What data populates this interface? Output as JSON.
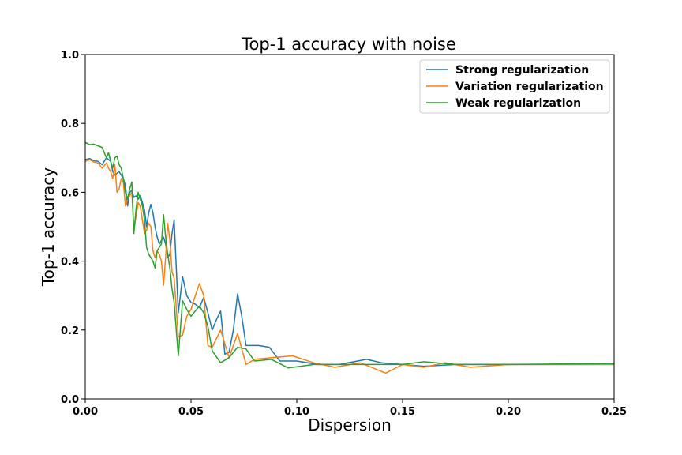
{
  "chart_data": {
    "type": "line",
    "title": "Top-1 accuracy with noise",
    "xlabel": "Dispersion",
    "ylabel": "Top-1 accuracy",
    "xlim": [
      0.0,
      0.25
    ],
    "ylim": [
      0.0,
      1.0
    ],
    "xticks": [
      0.0,
      0.05,
      0.1,
      0.15,
      0.2,
      0.25
    ],
    "yticks": [
      0.0,
      0.2,
      0.4,
      0.6,
      0.8,
      1.0
    ],
    "xtick_labels": [
      "0.00",
      "0.05",
      "0.10",
      "0.15",
      "0.20",
      "0.25"
    ],
    "ytick_labels": [
      "0.0",
      "0.2",
      "0.4",
      "0.6",
      "0.8",
      "1.0"
    ],
    "grid": false,
    "legend_position": "top-right",
    "series": [
      {
        "name": "Strong regularization",
        "color": "#1f77b4",
        "x": [
          0.0,
          0.002,
          0.004,
          0.006,
          0.008,
          0.01,
          0.011,
          0.012,
          0.013,
          0.014,
          0.016,
          0.018,
          0.019,
          0.02,
          0.021,
          0.022,
          0.023,
          0.024,
          0.025,
          0.026,
          0.027,
          0.028,
          0.029,
          0.03,
          0.031,
          0.032,
          0.033,
          0.034,
          0.035,
          0.036,
          0.037,
          0.038,
          0.039,
          0.04,
          0.041,
          0.042,
          0.044,
          0.046,
          0.048,
          0.05,
          0.052,
          0.054,
          0.056,
          0.058,
          0.06,
          0.062,
          0.064,
          0.066,
          0.068,
          0.07,
          0.072,
          0.074,
          0.076,
          0.078,
          0.082,
          0.087,
          0.092,
          0.1,
          0.11,
          0.12,
          0.133,
          0.14,
          0.15,
          0.16,
          0.175,
          0.2,
          0.225,
          0.25
        ],
        "y": [
          0.695,
          0.698,
          0.692,
          0.69,
          0.68,
          0.7,
          0.695,
          0.69,
          0.66,
          0.65,
          0.66,
          0.64,
          0.62,
          0.56,
          0.6,
          0.605,
          0.585,
          0.59,
          0.58,
          0.59,
          0.57,
          0.55,
          0.5,
          0.54,
          0.565,
          0.54,
          0.5,
          0.47,
          0.45,
          0.46,
          0.47,
          0.45,
          0.41,
          0.42,
          0.48,
          0.52,
          0.25,
          0.355,
          0.3,
          0.28,
          0.275,
          0.265,
          0.295,
          0.25,
          0.2,
          0.23,
          0.255,
          0.13,
          0.135,
          0.2,
          0.305,
          0.24,
          0.155,
          0.155,
          0.155,
          0.15,
          0.11,
          0.11,
          0.1,
          0.1,
          0.115,
          0.105,
          0.1,
          0.095,
          0.1,
          0.1,
          0.1,
          0.1
        ]
      },
      {
        "name": "Variation regularization",
        "color": "#ff7f0e",
        "x": [
          0.0,
          0.002,
          0.004,
          0.006,
          0.008,
          0.01,
          0.011,
          0.012,
          0.013,
          0.014,
          0.015,
          0.016,
          0.017,
          0.018,
          0.019,
          0.02,
          0.021,
          0.022,
          0.023,
          0.024,
          0.025,
          0.026,
          0.027,
          0.028,
          0.029,
          0.03,
          0.031,
          0.032,
          0.033,
          0.034,
          0.035,
          0.036,
          0.037,
          0.038,
          0.039,
          0.04,
          0.041,
          0.042,
          0.044,
          0.046,
          0.048,
          0.05,
          0.052,
          0.054,
          0.056,
          0.058,
          0.06,
          0.064,
          0.068,
          0.072,
          0.076,
          0.08,
          0.088,
          0.098,
          0.108,
          0.118,
          0.13,
          0.142,
          0.15,
          0.16,
          0.17,
          0.182,
          0.2,
          0.25
        ],
        "y": [
          0.69,
          0.695,
          0.688,
          0.685,
          0.67,
          0.685,
          0.67,
          0.66,
          0.64,
          0.68,
          0.6,
          0.61,
          0.64,
          0.63,
          0.56,
          0.58,
          0.59,
          0.6,
          0.49,
          0.53,
          0.57,
          0.56,
          0.52,
          0.48,
          0.49,
          0.51,
          0.5,
          0.43,
          0.41,
          0.43,
          0.42,
          0.4,
          0.33,
          0.41,
          0.51,
          0.46,
          0.37,
          0.35,
          0.18,
          0.185,
          0.24,
          0.26,
          0.3,
          0.335,
          0.3,
          0.155,
          0.15,
          0.2,
          0.12,
          0.19,
          0.1,
          0.115,
          0.12,
          0.125,
          0.105,
          0.092,
          0.105,
          0.075,
          0.1,
          0.092,
          0.105,
          0.092,
          0.1,
          0.1
        ]
      },
      {
        "name": "Weak regularization",
        "color": "#2ca02c",
        "x": [
          0.0,
          0.002,
          0.004,
          0.006,
          0.008,
          0.01,
          0.011,
          0.012,
          0.013,
          0.014,
          0.015,
          0.016,
          0.017,
          0.018,
          0.019,
          0.02,
          0.021,
          0.022,
          0.023,
          0.024,
          0.025,
          0.026,
          0.027,
          0.028,
          0.029,
          0.03,
          0.031,
          0.032,
          0.033,
          0.034,
          0.035,
          0.036,
          0.037,
          0.038,
          0.039,
          0.04,
          0.041,
          0.042,
          0.044,
          0.046,
          0.048,
          0.05,
          0.052,
          0.054,
          0.056,
          0.058,
          0.06,
          0.064,
          0.068,
          0.072,
          0.076,
          0.08,
          0.088,
          0.096,
          0.108,
          0.12,
          0.135,
          0.15,
          0.16,
          0.175,
          0.2,
          0.25
        ],
        "y": [
          0.745,
          0.738,
          0.74,
          0.735,
          0.73,
          0.7,
          0.715,
          0.69,
          0.67,
          0.7,
          0.705,
          0.68,
          0.67,
          0.64,
          0.6,
          0.58,
          0.61,
          0.63,
          0.48,
          0.55,
          0.6,
          0.58,
          0.56,
          0.52,
          0.44,
          0.42,
          0.41,
          0.4,
          0.38,
          0.43,
          0.44,
          0.45,
          0.535,
          0.47,
          0.42,
          0.38,
          0.32,
          0.28,
          0.125,
          0.285,
          0.26,
          0.24,
          0.255,
          0.27,
          0.25,
          0.21,
          0.14,
          0.105,
          0.12,
          0.15,
          0.145,
          0.11,
          0.115,
          0.09,
          0.1,
          0.1,
          0.1,
          0.1,
          0.108,
          0.1,
          0.1,
          0.103
        ]
      }
    ]
  }
}
